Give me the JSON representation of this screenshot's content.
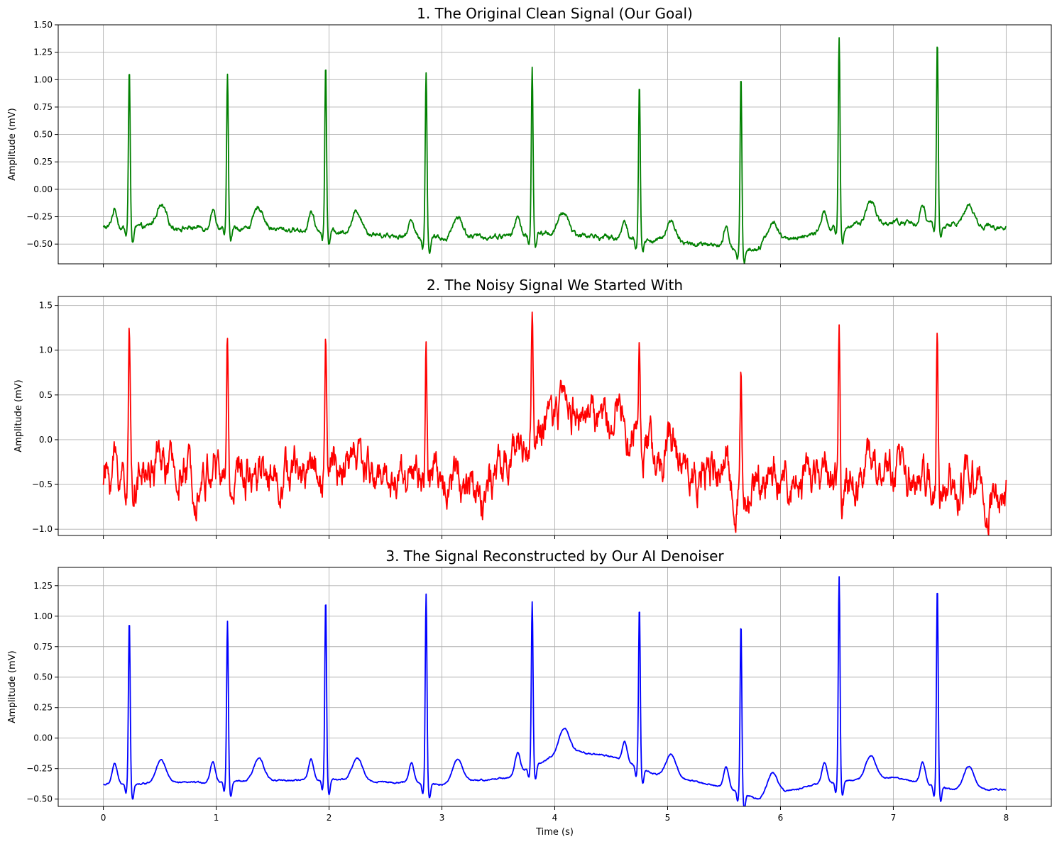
{
  "chart_data": [
    {
      "type": "line",
      "title": "1. The Original Clean Signal (Our Goal)",
      "xlabel": "",
      "ylabel": "Amplitude (mV)",
      "xlim": [
        -0.4,
        8.4
      ],
      "ylim": [
        -0.68,
        1.5
      ],
      "xticks": [
        0,
        1,
        2,
        3,
        4,
        5,
        6,
        7,
        8
      ],
      "yticks": [
        -0.5,
        -0.25,
        0.0,
        0.25,
        0.5,
        0.75,
        1.0,
        1.25,
        1.5
      ],
      "ytick_labels": [
        "−0.50",
        "−0.25",
        "0.00",
        "0.25",
        "0.50",
        "0.75",
        "1.00",
        "1.25",
        "1.50"
      ],
      "show_xtick_labels": false,
      "grid": true,
      "color": "#008000",
      "signal": {
        "duration_s": 8,
        "beats_s": [
          0.23,
          1.1,
          1.97,
          2.86,
          3.8,
          4.75,
          5.65,
          6.52,
          7.39
        ],
        "r_peaks": [
          1.09,
          1.02,
          1.14,
          1.08,
          1.1,
          0.98,
          1.04,
          1.4,
          1.33
        ],
        "baseline": [
          [
            0,
            -0.35
          ],
          [
            1,
            -0.35
          ],
          [
            2,
            -0.38
          ],
          [
            3,
            -0.45
          ],
          [
            4,
            -0.4
          ],
          [
            5,
            -0.48
          ],
          [
            5.7,
            -0.55
          ],
          [
            6.5,
            -0.35
          ],
          [
            7,
            -0.3
          ],
          [
            8,
            -0.35
          ]
        ],
        "noise": 0.015
      }
    },
    {
      "type": "line",
      "title": "2. The Noisy Signal We Started With",
      "xlabel": "",
      "ylabel": "Amplitude (mV)",
      "xlim": [
        -0.4,
        8.4
      ],
      "ylim": [
        -1.07,
        1.6
      ],
      "xticks": [
        0,
        1,
        2,
        3,
        4,
        5,
        6,
        7,
        8
      ],
      "yticks": [
        -1.0,
        -0.5,
        0.0,
        0.5,
        1.0,
        1.5
      ],
      "ytick_labels": [
        "−1.0",
        "−0.5",
        "0.0",
        "0.5",
        "1.0",
        "1.5"
      ],
      "show_xtick_labels": false,
      "grid": true,
      "color": "#ff0000",
      "signal": {
        "duration_s": 8,
        "beats_s": [
          0.23,
          1.1,
          1.97,
          2.86,
          3.8,
          4.75,
          5.65,
          6.52,
          7.39
        ],
        "r_peaks": [
          1.1,
          1.07,
          1.16,
          1.12,
          1.49,
          1.31,
          0.84,
          1.38,
          1.15
        ],
        "baseline": [
          [
            0,
            -0.4
          ],
          [
            1,
            -0.4
          ],
          [
            2,
            -0.35
          ],
          [
            3,
            -0.45
          ],
          [
            3.4,
            -0.6
          ],
          [
            3.7,
            -0.1
          ],
          [
            4.1,
            0.3
          ],
          [
            4.6,
            0.25
          ],
          [
            4.9,
            -0.2
          ],
          [
            5.3,
            -0.35
          ],
          [
            5.7,
            -0.6
          ],
          [
            6.2,
            -0.45
          ],
          [
            7,
            -0.4
          ],
          [
            7.4,
            -0.55
          ],
          [
            8,
            -0.65
          ]
        ],
        "noise": 0.09
      }
    },
    {
      "type": "line",
      "title": "3. The Signal Reconstructed by Our AI Denoiser",
      "xlabel": "Time (s)",
      "ylabel": "Amplitude (mV)",
      "xlim": [
        -0.4,
        8.4
      ],
      "ylim": [
        -0.56,
        1.4
      ],
      "xticks": [
        0,
        1,
        2,
        3,
        4,
        5,
        6,
        7,
        8
      ],
      "yticks": [
        -0.5,
        -0.25,
        0.0,
        0.25,
        0.5,
        0.75,
        1.0,
        1.25
      ],
      "ytick_labels": [
        "−0.50",
        "−0.25",
        "0.00",
        "0.25",
        "0.50",
        "0.75",
        "1.00",
        "1.25"
      ],
      "show_xtick_labels": true,
      "grid": true,
      "color": "#0000ff",
      "signal": {
        "duration_s": 8,
        "beats_s": [
          0.23,
          1.1,
          1.97,
          2.86,
          3.8,
          4.75,
          5.65,
          6.52,
          7.39
        ],
        "r_peaks": [
          0.97,
          0.96,
          1.14,
          1.18,
          1.12,
          1.08,
          0.95,
          1.33,
          1.24
        ],
        "baseline": [
          [
            0,
            -0.38
          ],
          [
            1,
            -0.36
          ],
          [
            2,
            -0.34
          ],
          [
            3,
            -0.38
          ],
          [
            3.6,
            -0.32
          ],
          [
            4.1,
            -0.1
          ],
          [
            4.5,
            -0.15
          ],
          [
            4.9,
            -0.3
          ],
          [
            5.5,
            -0.4
          ],
          [
            5.8,
            -0.5
          ],
          [
            6.3,
            -0.38
          ],
          [
            7,
            -0.32
          ],
          [
            7.5,
            -0.42
          ],
          [
            8,
            -0.42
          ]
        ],
        "noise": 0.004
      }
    }
  ]
}
